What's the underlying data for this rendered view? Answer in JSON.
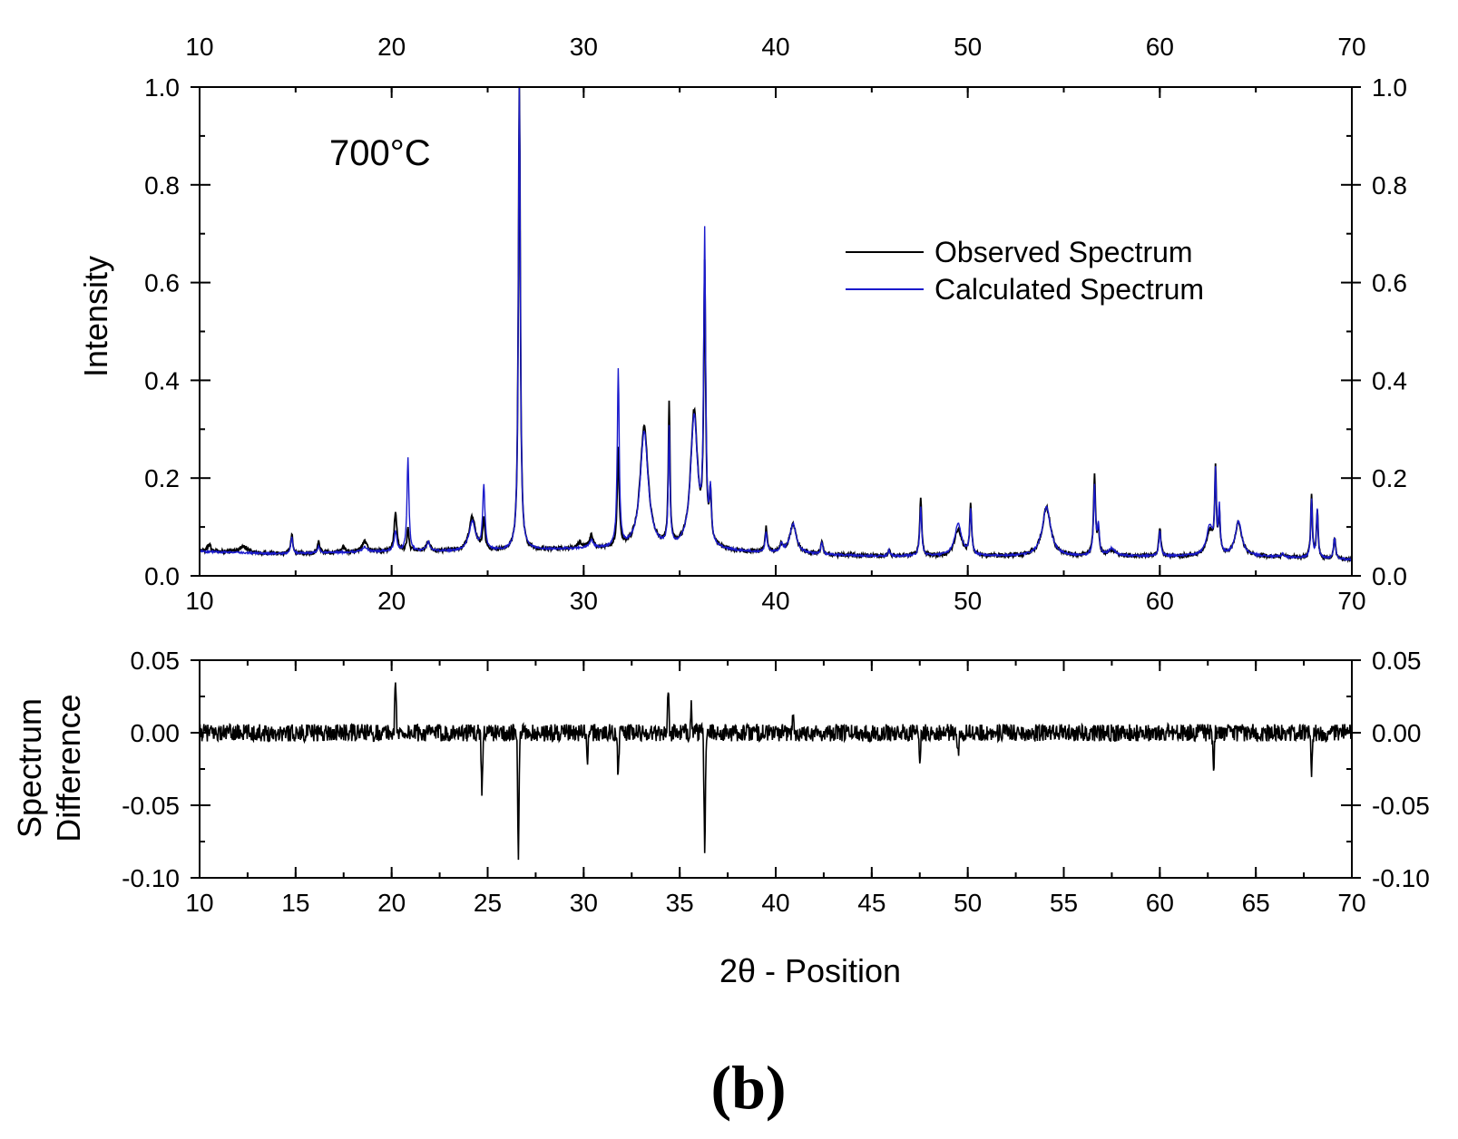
{
  "chart_data": [
    {
      "type": "line",
      "panel": "top",
      "annotation": "700°C",
      "ylabel": "Intensity",
      "xlabel": "",
      "xlim": [
        10,
        70
      ],
      "ylim": [
        0,
        1.0
      ],
      "x_ticks": [
        10,
        20,
        30,
        40,
        50,
        60,
        70
      ],
      "y_ticks": [
        "0.0",
        "0.2",
        "0.4",
        "0.6",
        "0.8",
        "1.0"
      ],
      "legend_position": "top-right",
      "baseline": [
        [
          10,
          0.05
        ],
        [
          14,
          0.045
        ],
        [
          20,
          0.05
        ],
        [
          25,
          0.05
        ],
        [
          30,
          0.055
        ],
        [
          37,
          0.05
        ],
        [
          45,
          0.04
        ],
        [
          55,
          0.04
        ],
        [
          60,
          0.04
        ],
        [
          65,
          0.04
        ],
        [
          70,
          0.033
        ]
      ],
      "series": [
        {
          "name": "Observed Spectrum",
          "color": "#000000",
          "peaks": [
            [
              10.5,
              0.014,
              0.1
            ],
            [
              12.3,
              0.012,
              0.3
            ],
            [
              14.8,
              0.04,
              0.06
            ],
            [
              16.2,
              0.025,
              0.06
            ],
            [
              17.5,
              0.012,
              0.08
            ],
            [
              18.6,
              0.02,
              0.15
            ],
            [
              20.2,
              0.08,
              0.08
            ],
            [
              20.85,
              0.05,
              0.06
            ],
            [
              21.9,
              0.02,
              0.1
            ],
            [
              24.2,
              0.07,
              0.2
            ],
            [
              24.8,
              0.06,
              0.07
            ],
            [
              26.65,
              0.95,
              0.06
            ],
            [
              29.8,
              0.012,
              0.1
            ],
            [
              30.4,
              0.025,
              0.12
            ],
            [
              31.8,
              0.2,
              0.06
            ],
            [
              33.15,
              0.25,
              0.25
            ],
            [
              34.45,
              0.29,
              0.05
            ],
            [
              35.75,
              0.28,
              0.22
            ],
            [
              36.3,
              0.55,
              0.06
            ],
            [
              36.6,
              0.1,
              0.06
            ],
            [
              39.5,
              0.05,
              0.06
            ],
            [
              40.3,
              0.015,
              0.08
            ],
            [
              40.9,
              0.06,
              0.2
            ],
            [
              42.4,
              0.03,
              0.06
            ],
            [
              45.9,
              0.015,
              0.06
            ],
            [
              47.55,
              0.12,
              0.06
            ],
            [
              49.5,
              0.055,
              0.22
            ],
            [
              50.15,
              0.1,
              0.06
            ],
            [
              54.1,
              0.1,
              0.26
            ],
            [
              56.6,
              0.16,
              0.06
            ],
            [
              56.8,
              0.05,
              0.06
            ],
            [
              57.5,
              0.012,
              0.2
            ],
            [
              60.0,
              0.06,
              0.06
            ],
            [
              62.6,
              0.05,
              0.2
            ],
            [
              62.9,
              0.17,
              0.05
            ],
            [
              63.1,
              0.08,
              0.05
            ],
            [
              64.1,
              0.07,
              0.2
            ],
            [
              66.4,
              0.008,
              0.06
            ],
            [
              67.9,
              0.13,
              0.05
            ],
            [
              68.2,
              0.1,
              0.05
            ],
            [
              69.1,
              0.045,
              0.06
            ]
          ]
        },
        {
          "name": "Calculated Spectrum",
          "color": "#1a1acc",
          "peaks": [
            [
              14.8,
              0.035,
              0.06
            ],
            [
              16.2,
              0.015,
              0.06
            ],
            [
              18.6,
              0.01,
              0.15
            ],
            [
              20.2,
              0.04,
              0.08
            ],
            [
              20.85,
              0.19,
              0.06
            ],
            [
              21.9,
              0.02,
              0.1
            ],
            [
              24.2,
              0.06,
              0.2
            ],
            [
              24.8,
              0.13,
              0.07
            ],
            [
              26.65,
              0.95,
              0.06
            ],
            [
              30.4,
              0.015,
              0.12
            ],
            [
              31.8,
              0.36,
              0.06
            ],
            [
              33.15,
              0.24,
              0.25
            ],
            [
              34.45,
              0.24,
              0.05
            ],
            [
              35.75,
              0.27,
              0.22
            ],
            [
              36.3,
              0.62,
              0.06
            ],
            [
              36.6,
              0.1,
              0.06
            ],
            [
              39.5,
              0.04,
              0.06
            ],
            [
              40.3,
              0.015,
              0.08
            ],
            [
              40.9,
              0.06,
              0.2
            ],
            [
              42.4,
              0.025,
              0.06
            ],
            [
              45.9,
              0.012,
              0.06
            ],
            [
              47.55,
              0.1,
              0.06
            ],
            [
              49.5,
              0.065,
              0.22
            ],
            [
              50.15,
              0.09,
              0.06
            ],
            [
              54.1,
              0.1,
              0.26
            ],
            [
              56.6,
              0.14,
              0.06
            ],
            [
              56.8,
              0.06,
              0.06
            ],
            [
              57.5,
              0.015,
              0.2
            ],
            [
              60.0,
              0.05,
              0.06
            ],
            [
              62.6,
              0.06,
              0.2
            ],
            [
              62.9,
              0.16,
              0.05
            ],
            [
              63.1,
              0.09,
              0.05
            ],
            [
              64.1,
              0.07,
              0.2
            ],
            [
              66.4,
              0.008,
              0.06
            ],
            [
              67.9,
              0.12,
              0.05
            ],
            [
              68.2,
              0.1,
              0.05
            ],
            [
              69.1,
              0.045,
              0.06
            ]
          ]
        }
      ]
    },
    {
      "type": "line",
      "panel": "bottom",
      "ylabel": "Spectrum\nDifference",
      "xlabel": "2θ - Position",
      "xlim": [
        10,
        70
      ],
      "ylim": [
        -0.1,
        0.05
      ],
      "x_ticks": [
        10,
        15,
        20,
        25,
        30,
        35,
        40,
        45,
        50,
        55,
        60,
        65,
        70
      ],
      "y_ticks": [
        "-0.10",
        "-0.05",
        "0.00",
        "0.05"
      ],
      "series": [
        {
          "name": "Difference",
          "color": "#000000",
          "noise_amplitude": 0.006,
          "features": [
            [
              20.2,
              0.035
            ],
            [
              24.7,
              -0.04
            ],
            [
              26.6,
              -0.085
            ],
            [
              34.4,
              0.03
            ],
            [
              35.6,
              0.02
            ],
            [
              36.3,
              -0.08
            ],
            [
              31.8,
              -0.03
            ],
            [
              49.5,
              -0.015
            ],
            [
              62.8,
              -0.025
            ],
            [
              67.9,
              -0.03
            ],
            [
              47.5,
              -0.02
            ],
            [
              30.2,
              -0.02
            ],
            [
              40.9,
              0.01
            ]
          ]
        }
      ]
    }
  ],
  "panel_label": "(b)"
}
